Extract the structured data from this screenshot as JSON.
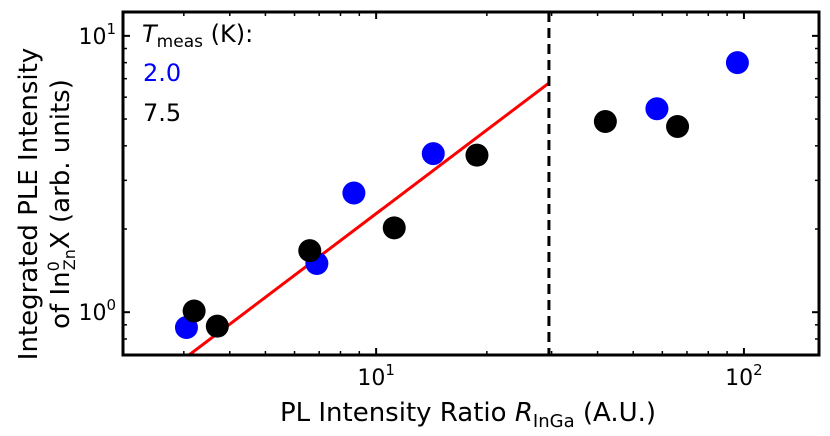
{
  "chart_data": {
    "type": "scatter",
    "title": "",
    "xlabel_prefix": "PL Intensity Ratio ",
    "xlabel_var": "R",
    "xlabel_sub": "InGa",
    "xlabel_suffix": " (A.U.)",
    "ylabel_line1": "Integrated PLE Intensity",
    "ylabel_line2_prefix": "of In",
    "ylabel_line2_sup": "0",
    "ylabel_line2_sub": "Zn",
    "ylabel_line2_suffix": "X (arb. units)",
    "xscale": "log",
    "yscale": "log",
    "xlim": [
      2.05,
      160
    ],
    "ylim": [
      0.7,
      12.2
    ],
    "xticks": [
      {
        "value": 10,
        "base": "10",
        "exp": "1"
      },
      {
        "value": 100,
        "base": "10",
        "exp": "2"
      }
    ],
    "yticks": [
      {
        "value": 1,
        "base": "10",
        "exp": "0"
      },
      {
        "value": 10,
        "base": "10",
        "exp": "1"
      }
    ],
    "legend": {
      "title_var": "T",
      "title_sub": "meas",
      "title_suffix": " (K):",
      "placement": "top-left",
      "entries": [
        {
          "label": "2.0",
          "color": "#0000ff"
        },
        {
          "label": "7.5",
          "color": "#000000"
        }
      ]
    },
    "series": [
      {
        "name": "2.0",
        "color": "#0000ff",
        "points": [
          {
            "x": 3.05,
            "y": 0.88
          },
          {
            "x": 6.9,
            "y": 1.5
          },
          {
            "x": 8.7,
            "y": 2.7
          },
          {
            "x": 14.3,
            "y": 3.75
          },
          {
            "x": 58,
            "y": 5.45
          },
          {
            "x": 96,
            "y": 8.0
          }
        ]
      },
      {
        "name": "7.5",
        "color": "#000000",
        "points": [
          {
            "x": 3.2,
            "y": 1.01
          },
          {
            "x": 3.7,
            "y": 0.89
          },
          {
            "x": 6.6,
            "y": 1.67
          },
          {
            "x": 11.2,
            "y": 2.02
          },
          {
            "x": 18.8,
            "y": 3.7
          },
          {
            "x": 42,
            "y": 4.9
          },
          {
            "x": 66,
            "y": 4.7
          }
        ]
      }
    ],
    "fit_line": {
      "color": "#ff0000",
      "points": [
        {
          "x": 3.1,
          "y": 0.7
        },
        {
          "x": 29.5,
          "y": 6.75
        }
      ]
    },
    "vline": {
      "x": 29.5,
      "color": "#000000",
      "style": "dashed"
    }
  }
}
